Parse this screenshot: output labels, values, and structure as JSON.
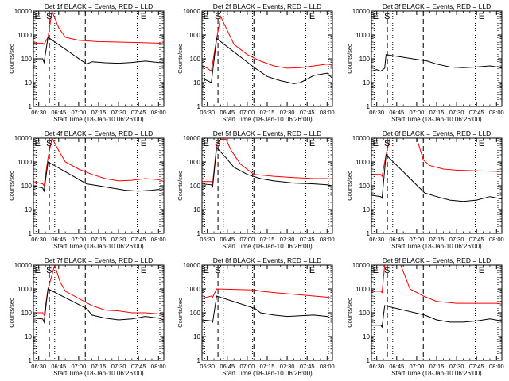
{
  "figure": {
    "colors": {
      "events": "#000000",
      "lld": "#ff0000",
      "axes": "#000000",
      "background": "#ffffff"
    },
    "xticks": [
      "06:30",
      "06:45",
      "07:00",
      "07:15",
      "07:30",
      "07:45",
      "08:00"
    ],
    "xlabel": "Start Time (18-Jan-10 06:26:00)",
    "ylabel": "Counts/sec",
    "yticks": [
      "1",
      "10",
      "100",
      "1000",
      "10000"
    ],
    "dotted_lines": [
      "06:28",
      "06:42",
      "07:04",
      "07:44",
      "08:01"
    ],
    "dashed_lines": [
      "06:38",
      "07:05"
    ],
    "markers": {
      "E1": "06:27",
      "S": "06:38",
      "E2": "07:49"
    },
    "marker_labels": {
      "E1": "E",
      "S": "S",
      "E2": "E"
    }
  },
  "chart_data": [
    {
      "type": "line",
      "title": "Det 1f BLACK = Events, RED = LLD",
      "ylim": [
        1,
        10000
      ],
      "yscale": "log",
      "series": [
        {
          "color": "red",
          "x": [
            "06:26",
            "06:33",
            "06:34",
            "06:37",
            "06:40",
            "06:45",
            "06:50",
            "07:00",
            "07:15",
            "07:30",
            "07:45",
            "07:55",
            "08:00",
            "08:04"
          ],
          "values": [
            450,
            450,
            400,
            800,
            10000,
            2000,
            800,
            600,
            520,
            500,
            480,
            460,
            450,
            420
          ]
        },
        {
          "color": "black",
          "x": [
            "06:26",
            "06:33",
            "06:34",
            "06:37",
            "07:06",
            "07:10",
            "07:20",
            "07:30",
            "07:40",
            "07:50",
            "07:55",
            "08:00",
            "08:04"
          ],
          "values": [
            100,
            100,
            70,
            800,
            60,
            75,
            68,
            65,
            70,
            80,
            75,
            70,
            68
          ]
        }
      ]
    },
    {
      "type": "line",
      "title": "Det 2f BLACK = Events, RED = LLD",
      "ylim": [
        1,
        10000
      ],
      "yscale": "log",
      "series": [
        {
          "color": "red",
          "x": [
            "06:26",
            "06:30",
            "06:33",
            "06:37",
            "06:40",
            "06:50",
            "07:00",
            "07:10",
            "07:20",
            "07:30",
            "07:40",
            "07:50",
            "08:00",
            "08:04"
          ],
          "values": [
            50,
            40,
            30,
            700,
            6000,
            400,
            150,
            80,
            50,
            40,
            42,
            50,
            60,
            55
          ]
        },
        {
          "color": "black",
          "x": [
            "06:26",
            "06:30",
            "06:33",
            "06:37",
            "07:06",
            "07:15",
            "07:25",
            "07:35",
            "07:40",
            "07:50",
            "08:00",
            "08:04"
          ],
          "values": [
            15,
            12,
            10,
            700,
            40,
            18,
            12,
            9,
            10,
            20,
            25,
            15
          ]
        }
      ]
    },
    {
      "type": "line",
      "title": "Det 3f BLACK = Events, RED = LLD",
      "ylim": [
        1,
        10000
      ],
      "yscale": "log",
      "series": [
        {
          "color": "black",
          "x": [
            "06:26",
            "06:30",
            "06:33",
            "06:36",
            "06:37",
            "07:08",
            "07:15",
            "07:25",
            "07:35",
            "07:45",
            "07:55",
            "08:04"
          ],
          "values": [
            30,
            35,
            30,
            40,
            150,
            80,
            60,
            45,
            42,
            45,
            50,
            42
          ]
        }
      ]
    },
    {
      "type": "line",
      "title": "Det 4f BLACK = Events, RED = LLD",
      "ylim": [
        1,
        10000
      ],
      "yscale": "log",
      "series": [
        {
          "color": "red",
          "x": [
            "06:26",
            "06:33",
            "06:34",
            "06:37",
            "06:40",
            "06:45",
            "06:50",
            "07:00",
            "07:10",
            "07:20",
            "07:30",
            "07:40",
            "07:50",
            "08:00",
            "08:04"
          ],
          "values": [
            150,
            120,
            100,
            1500,
            10000,
            3000,
            1000,
            500,
            300,
            200,
            160,
            170,
            200,
            180,
            150
          ]
        },
        {
          "color": "black",
          "x": [
            "06:26",
            "06:33",
            "06:34",
            "06:37",
            "07:06",
            "07:15",
            "07:25",
            "07:35",
            "07:45",
            "07:55",
            "08:00",
            "08:04"
          ],
          "values": [
            100,
            80,
            60,
            1000,
            120,
            100,
            80,
            65,
            60,
            65,
            70,
            60
          ]
        }
      ]
    },
    {
      "type": "line",
      "title": "Det 5f BLACK = Events, RED = LLD",
      "ylim": [
        1,
        10000
      ],
      "yscale": "log",
      "series": [
        {
          "color": "red",
          "x": [
            "06:26",
            "06:33",
            "06:34",
            "06:37",
            "06:40",
            "06:44",
            "06:48",
            "06:55",
            "07:05",
            "07:20",
            "07:35",
            "07:50",
            "08:00",
            "08:04"
          ],
          "values": [
            150,
            150,
            130,
            5000,
            9000,
            9000,
            3000,
            800,
            300,
            250,
            220,
            200,
            200,
            190
          ]
        },
        {
          "color": "black",
          "x": [
            "06:26",
            "06:33",
            "06:34",
            "06:37",
            "06:44",
            "06:50",
            "07:00",
            "07:10",
            "07:20",
            "07:35",
            "07:50",
            "08:00",
            "08:04"
          ],
          "values": [
            120,
            110,
            90,
            4000,
            1500,
            600,
            300,
            200,
            160,
            130,
            120,
            110,
            100
          ]
        }
      ]
    },
    {
      "type": "line",
      "title": "Det 6f BLACK = Events, RED = LLD",
      "ylim": [
        1,
        10000
      ],
      "yscale": "log",
      "series": [
        {
          "color": "red",
          "x": [
            "06:26",
            "06:33",
            "06:34",
            "06:37",
            "06:40",
            "07:00",
            "07:05",
            "07:10",
            "07:20",
            "07:30",
            "07:45",
            "08:00",
            "08:04"
          ],
          "values": [
            300,
            300,
            250,
            2000,
            10000,
            10000,
            1200,
            700,
            500,
            450,
            420,
            400,
            400
          ]
        },
        {
          "color": "black",
          "x": [
            "06:26",
            "06:33",
            "06:34",
            "06:37",
            "07:06",
            "07:15",
            "07:25",
            "07:35",
            "07:45",
            "07:55",
            "08:04"
          ],
          "values": [
            40,
            35,
            30,
            2000,
            50,
            35,
            25,
            22,
            25,
            35,
            28
          ]
        }
      ]
    },
    {
      "type": "line",
      "title": "Det 7f BLACK = Events, RED = LLD",
      "ylim": [
        1,
        10000
      ],
      "yscale": "log",
      "series": [
        {
          "color": "red",
          "x": [
            "06:26",
            "06:33",
            "06:34",
            "06:37",
            "06:42",
            "06:46",
            "06:50",
            "07:00",
            "07:10",
            "07:20",
            "07:30",
            "07:40",
            "07:50",
            "08:00",
            "08:04"
          ],
          "values": [
            100,
            100,
            80,
            1000,
            10000,
            2000,
            800,
            400,
            200,
            130,
            120,
            100,
            100,
            90,
            80
          ]
        },
        {
          "color": "black",
          "x": [
            "06:26",
            "06:33",
            "06:34",
            "06:37",
            "07:06",
            "07:10",
            "07:20",
            "07:30",
            "07:40",
            "07:50",
            "08:00",
            "08:04"
          ],
          "values": [
            60,
            55,
            40,
            1000,
            150,
            80,
            60,
            50,
            55,
            70,
            60,
            50
          ]
        }
      ]
    },
    {
      "type": "line",
      "title": "Det 8f BLACK = Events, RED = LLD",
      "ylim": [
        1,
        10000
      ],
      "yscale": "log",
      "series": [
        {
          "color": "red",
          "x": [
            "06:26",
            "06:33",
            "06:34",
            "06:37",
            "07:06",
            "07:10",
            "07:20",
            "07:35",
            "07:50",
            "08:00",
            "08:04"
          ],
          "values": [
            400,
            500,
            450,
            1000,
            900,
            800,
            700,
            600,
            500,
            450,
            400
          ]
        },
        {
          "color": "black",
          "x": [
            "06:26",
            "06:33",
            "06:34",
            "06:37",
            "07:06",
            "07:10",
            "07:20",
            "07:30",
            "07:40",
            "07:50",
            "08:00",
            "08:04"
          ],
          "values": [
            50,
            45,
            40,
            500,
            150,
            100,
            80,
            70,
            75,
            80,
            70,
            55
          ]
        }
      ]
    },
    {
      "type": "line",
      "title": "Det 9f BLACK = Events, RED = LLD",
      "ylim": [
        1,
        10000
      ],
      "yscale": "log",
      "series": [
        {
          "color": "red",
          "x": [
            "06:26",
            "06:33",
            "06:34",
            "06:36",
            "06:48",
            "06:55",
            "07:05",
            "07:15",
            "07:30",
            "07:45",
            "08:00",
            "08:04"
          ],
          "values": [
            800,
            800,
            700,
            10000,
            10000,
            1000,
            500,
            300,
            250,
            250,
            250,
            230
          ]
        },
        {
          "color": "black",
          "x": [
            "06:26",
            "06:33",
            "06:34",
            "06:36",
            "07:06",
            "07:15",
            "07:25",
            "07:35",
            "07:45",
            "07:55",
            "08:04"
          ],
          "values": [
            30,
            30,
            25,
            200,
            80,
            50,
            40,
            40,
            45,
            55,
            45
          ]
        }
      ]
    }
  ]
}
